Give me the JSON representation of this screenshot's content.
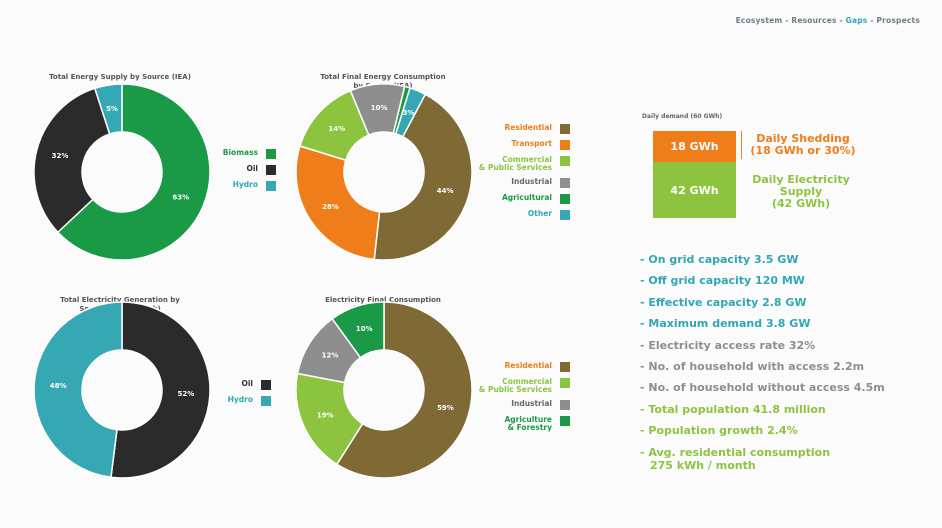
{
  "nav": {
    "ecosystem": "Ecosystem",
    "sep1": " - ",
    "resources": "Resources",
    "sep2": " - ",
    "gaps": "Gaps",
    "sep3": " - ",
    "prospects": "Prospects"
  },
  "chart_data": [
    {
      "type": "pie",
      "title_line1": "Total Energy Supply by Source (IEA)",
      "title_line2": "",
      "series": [
        {
          "name": "Biomass",
          "value": 63,
          "label": "63%",
          "color": "#1a9a47"
        },
        {
          "name": "Oil",
          "value": 32,
          "label": "32%",
          "color": "#2b2b2b"
        },
        {
          "name": "Hydro",
          "value": 5,
          "label": "5%",
          "color": "#36a8b4"
        }
      ]
    },
    {
      "type": "pie",
      "title_line1": "Total Final Energy Consumption",
      "title_line2": "by Sector (IEA)",
      "series": [
        {
          "name": "Residential",
          "value": 44,
          "label": "44%",
          "color": "#7f6a36"
        },
        {
          "name": "Transport",
          "value": 28,
          "label": "28%",
          "color": "#ef7d1a"
        },
        {
          "name": "Commercial",
          "name2": "& Public Services",
          "value": 14,
          "label": "14%",
          "color": "#8cc43f"
        },
        {
          "name": "Industrial",
          "value": 10,
          "label": "10%",
          "color": "#8e8e8e"
        },
        {
          "name": "Agricultural",
          "value": 1,
          "label": "",
          "color": "#1a9a47"
        },
        {
          "name": "Other",
          "value": 3,
          "label": "3%",
          "color": "#36a8b4"
        }
      ]
    },
    {
      "type": "pie",
      "title_line1": "Total Electricity Generation by",
      "title_line2": "Source (World Bank)",
      "series": [
        {
          "name": "Oil",
          "value": 52,
          "label": "52%",
          "color": "#2b2b2b"
        },
        {
          "name": "Hydro",
          "value": 48,
          "label": "48%",
          "color": "#36a8b4"
        }
      ]
    },
    {
      "type": "pie",
      "title_line1": "Electricity Final Consumption",
      "title_line2": "by Sector (IEA)",
      "series": [
        {
          "name": "Residential",
          "value": 59,
          "label": "59%",
          "color": "#7f6a36"
        },
        {
          "name": "Commercial",
          "name2": "& Public Services",
          "value": 19,
          "label": "19%",
          "color": "#8cc43f"
        },
        {
          "name": "Industrial",
          "value": 12,
          "label": "12%",
          "color": "#8e8e8e"
        },
        {
          "name": "Agriculture",
          "name2": "& Forestry",
          "value": 10,
          "label": "10%",
          "color": "#1a9a47"
        }
      ]
    }
  ],
  "demand": {
    "title": "Daily demand (60 GWh)",
    "shed_value": "18 GWh",
    "supply_value": "42 GWh",
    "shed_label1": "Daily Shedding",
    "shed_label2": "(18 GWh or 30%)",
    "supply_label1": "Daily Electricity",
    "supply_label2": "Supply",
    "supply_label3": "(42 GWh)",
    "shed_fraction": 0.3,
    "colors": {
      "shed": "#ef7d1a",
      "supply": "#8cc43f"
    }
  },
  "stats": [
    {
      "text": "- On grid capacity 3.5 GW",
      "color": "#2fa7b5"
    },
    {
      "text": "- Off grid capacity 120 MW",
      "color": "#2fa7b5"
    },
    {
      "text": "- Effective capacity 2.8 GW",
      "color": "#2fa7b5"
    },
    {
      "text": "- Maximum demand 3.8 GW",
      "color": "#2fa7b5"
    },
    {
      "text": "- Electricity access rate 32%",
      "color": "#8e8e8e"
    },
    {
      "text": "- No. of household with access 2.2m",
      "color": "#8e8e8e"
    },
    {
      "text": "- No. of household without access 4.5m",
      "color": "#8e8e8e"
    },
    {
      "text": "- Total population 41.8 million",
      "color": "#8cc43f"
    },
    {
      "text": "- Population growth 2.4%",
      "color": "#8cc43f"
    },
    {
      "text": "- Avg. residential consumption",
      "text2": "275 kWh / month",
      "color": "#8cc43f"
    }
  ]
}
